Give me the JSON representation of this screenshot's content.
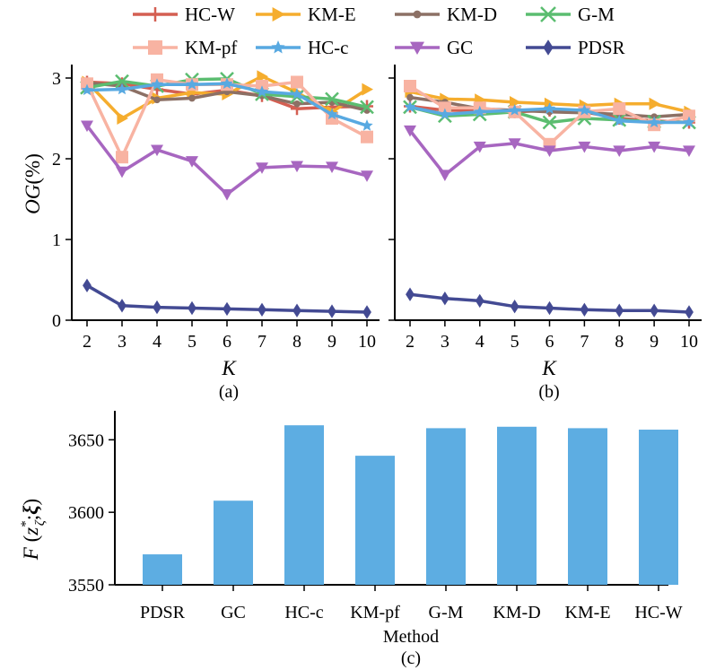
{
  "legend": {
    "entries": [
      {
        "name": "HC-W",
        "color": "#d45f52",
        "marker": "plus"
      },
      {
        "name": "KM-E",
        "color": "#f5ad2e",
        "marker": "triangle-right"
      },
      {
        "name": "KM-D",
        "color": "#8c7065",
        "marker": "circle"
      },
      {
        "name": "G-M",
        "color": "#5bbd70",
        "marker": "x"
      },
      {
        "name": "KM-pf",
        "color": "#f8b3a2",
        "marker": "square"
      },
      {
        "name": "HC-c",
        "color": "#58a9e1",
        "marker": "star"
      },
      {
        "name": "GC",
        "color": "#a766c0",
        "marker": "triangle-down"
      },
      {
        "name": "PDSR",
        "color": "#434a93",
        "marker": "diamond"
      }
    ]
  },
  "chart_data": [
    {
      "type": "line",
      "panel_label": "(a)",
      "xlabel": "K",
      "ylabel": "OG(%)",
      "ylabel_italic_part": "OG",
      "ylabel_rest": "(%)",
      "ylim": [
        0,
        3.1
      ],
      "yticks": [
        "0",
        "1",
        "2",
        "3"
      ],
      "x": [
        "2",
        "3",
        "4",
        "5",
        "6",
        "7",
        "8",
        "9",
        "10"
      ],
      "series": [
        {
          "name": "HC-W",
          "values": [
            2.95,
            2.93,
            2.86,
            2.8,
            2.85,
            2.78,
            2.62,
            2.64,
            2.65
          ]
        },
        {
          "name": "KM-E",
          "values": [
            2.95,
            2.5,
            2.75,
            2.82,
            2.8,
            3.02,
            2.82,
            2.58,
            2.86
          ]
        },
        {
          "name": "KM-D",
          "values": [
            2.94,
            2.9,
            2.73,
            2.75,
            2.83,
            2.78,
            2.68,
            2.7,
            2.6
          ]
        },
        {
          "name": "G-M",
          "values": [
            2.88,
            2.96,
            2.9,
            2.98,
            2.99,
            2.8,
            2.77,
            2.74,
            2.64
          ]
        },
        {
          "name": "KM-pf",
          "values": [
            2.93,
            2.02,
            2.98,
            2.92,
            2.92,
            2.9,
            2.95,
            2.5,
            2.27
          ]
        },
        {
          "name": "HC-c",
          "values": [
            2.85,
            2.86,
            2.92,
            2.92,
            2.93,
            2.83,
            2.8,
            2.55,
            2.41
          ]
        },
        {
          "name": "GC",
          "values": [
            2.41,
            1.84,
            2.11,
            1.97,
            1.56,
            1.89,
            1.91,
            1.9,
            1.79
          ]
        },
        {
          "name": "PDSR",
          "values": [
            0.43,
            0.18,
            0.16,
            0.15,
            0.14,
            0.13,
            0.12,
            0.11,
            0.1
          ]
        }
      ]
    },
    {
      "type": "line",
      "panel_label": "(b)",
      "xlabel": "K",
      "ylim": [
        0,
        3.1
      ],
      "x": [
        "2",
        "3",
        "4",
        "5",
        "6",
        "7",
        "8",
        "9",
        "10"
      ],
      "series": [
        {
          "name": "HC-W",
          "values": [
            2.65,
            2.6,
            2.6,
            2.58,
            2.6,
            2.58,
            2.5,
            2.47,
            2.45
          ]
        },
        {
          "name": "KM-E",
          "values": [
            2.83,
            2.74,
            2.73,
            2.7,
            2.68,
            2.66,
            2.68,
            2.68,
            2.58
          ]
        },
        {
          "name": "KM-D",
          "values": [
            2.76,
            2.7,
            2.62,
            2.6,
            2.58,
            2.57,
            2.55,
            2.52,
            2.55
          ]
        },
        {
          "name": "G-M",
          "values": [
            2.64,
            2.53,
            2.55,
            2.58,
            2.45,
            2.5,
            2.48,
            2.46,
            2.45
          ]
        },
        {
          "name": "KM-pf",
          "values": [
            2.9,
            2.63,
            2.63,
            2.58,
            2.18,
            2.58,
            2.62,
            2.42,
            2.53
          ]
        },
        {
          "name": "HC-c",
          "values": [
            2.64,
            2.55,
            2.58,
            2.6,
            2.62,
            2.6,
            2.47,
            2.45,
            2.45
          ]
        },
        {
          "name": "GC",
          "values": [
            2.35,
            1.8,
            2.15,
            2.19,
            2.1,
            2.15,
            2.1,
            2.15,
            2.1
          ]
        },
        {
          "name": "PDSR",
          "values": [
            0.32,
            0.27,
            0.24,
            0.17,
            0.15,
            0.13,
            0.12,
            0.12,
            0.1
          ]
        }
      ]
    },
    {
      "type": "bar",
      "panel_label": "(c)",
      "xlabel": "Method",
      "ylabel": "F(z*_ζ, ξ)",
      "ylim": [
        3550,
        3670
      ],
      "yticks": [
        "3550",
        "3600",
        "3650"
      ],
      "bar_color": "#5dade2",
      "categories": [
        "PDSR",
        "GC",
        "HC-c",
        "KM-pf",
        "G-M",
        "KM-D",
        "KM-E",
        "HC-W"
      ],
      "values": [
        3571,
        3608,
        3660,
        3639,
        3658,
        3659,
        3658,
        3657
      ]
    }
  ]
}
